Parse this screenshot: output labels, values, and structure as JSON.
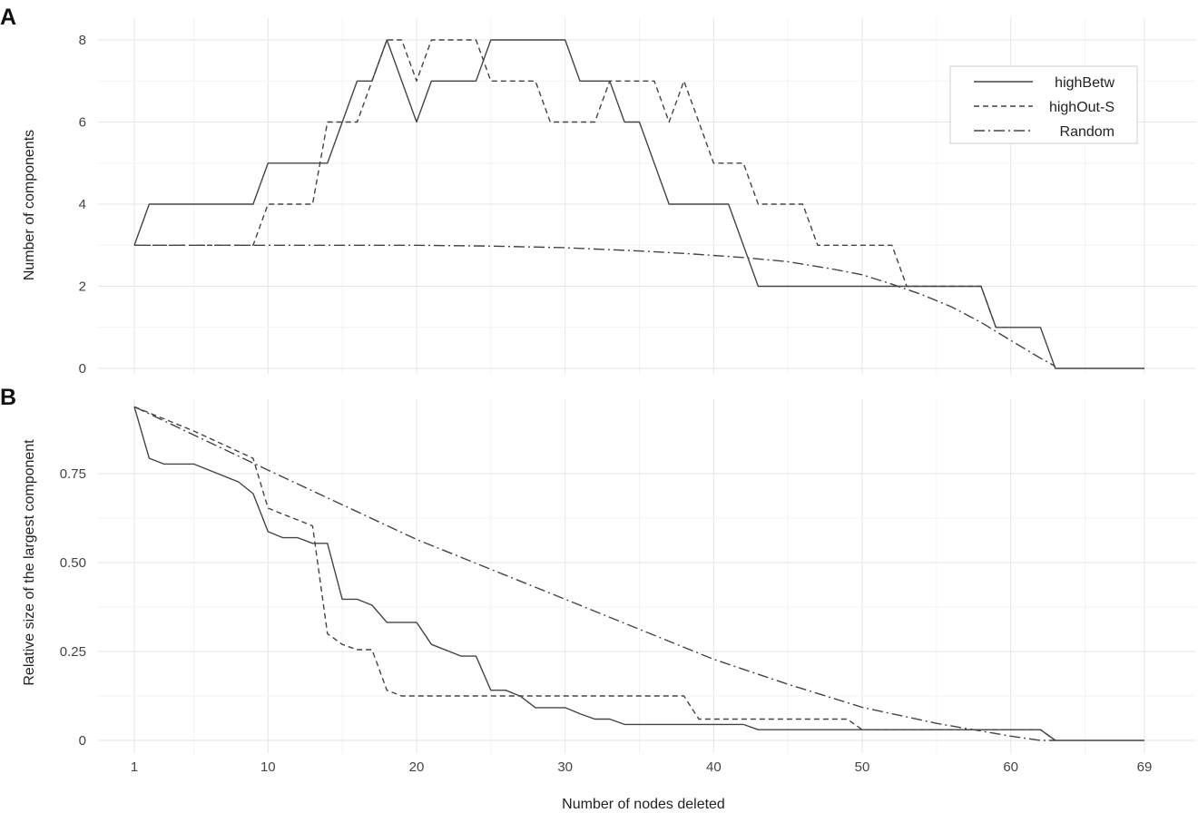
{
  "chart_data": [
    {
      "type": "line",
      "panel": "A",
      "title": "",
      "xlabel": "",
      "ylabel": "Number of components",
      "xlim": [
        1,
        69
      ],
      "ylim": [
        0,
        8
      ],
      "x_ticks": [
        1,
        10,
        20,
        30,
        40,
        50,
        60,
        69
      ],
      "y_ticks": [
        0,
        2,
        4,
        6,
        8
      ],
      "y_tick_labels": [
        "0",
        "2",
        "4",
        "6",
        "8"
      ],
      "grid": true,
      "legend": {
        "placement": "top-right",
        "entries": [
          "highBetw",
          "highOut-S",
          "Random"
        ]
      },
      "series": [
        {
          "name": "highBetw",
          "style": "solid",
          "points": [
            [
              1,
              3
            ],
            [
              2,
              4
            ],
            [
              9,
              4
            ],
            [
              10,
              5
            ],
            [
              14,
              5
            ],
            [
              16,
              7
            ],
            [
              17,
              7
            ],
            [
              18,
              8
            ],
            [
              20,
              6
            ],
            [
              21,
              7
            ],
            [
              24,
              7
            ],
            [
              25,
              8
            ],
            [
              30,
              8
            ],
            [
              31,
              7
            ],
            [
              33,
              7
            ],
            [
              34,
              6
            ],
            [
              35,
              6
            ],
            [
              37,
              4
            ],
            [
              41,
              4
            ],
            [
              43,
              2
            ],
            [
              58,
              2
            ],
            [
              59,
              1
            ],
            [
              61,
              1
            ],
            [
              62,
              1
            ],
            [
              63,
              0
            ],
            [
              69,
              0
            ]
          ]
        },
        {
          "name": "highOut-S",
          "style": "dashed",
          "points": [
            [
              1,
              3
            ],
            [
              9,
              3
            ],
            [
              10,
              4
            ],
            [
              13,
              4
            ],
            [
              14,
              6
            ],
            [
              16,
              6
            ],
            [
              17,
              7
            ],
            [
              18,
              8
            ],
            [
              19,
              8
            ],
            [
              20,
              7
            ],
            [
              21,
              8
            ],
            [
              24,
              8
            ],
            [
              25,
              7
            ],
            [
              28,
              7
            ],
            [
              29,
              6
            ],
            [
              32,
              6
            ],
            [
              33,
              7
            ],
            [
              36,
              7
            ],
            [
              37,
              6
            ],
            [
              38,
              7
            ],
            [
              39,
              6
            ],
            [
              40,
              5
            ],
            [
              42,
              5
            ],
            [
              43,
              4
            ],
            [
              46,
              4
            ],
            [
              47,
              3
            ],
            [
              52,
              3
            ],
            [
              53,
              2
            ],
            [
              58,
              2
            ],
            [
              59,
              1
            ],
            [
              60,
              1
            ]
          ]
        },
        {
          "name": "Random",
          "style": "dashdot",
          "points": [
            [
              1,
              3
            ],
            [
              10,
              3
            ],
            [
              20,
              3
            ],
            [
              25,
              2.98
            ],
            [
              30,
              2.94
            ],
            [
              35,
              2.86
            ],
            [
              38,
              2.8
            ],
            [
              42,
              2.7
            ],
            [
              45,
              2.6
            ],
            [
              48,
              2.42
            ],
            [
              50,
              2.28
            ],
            [
              52,
              2.05
            ],
            [
              54,
              1.8
            ],
            [
              56,
              1.5
            ],
            [
              58,
              1.12
            ],
            [
              60,
              0.68
            ],
            [
              62,
              0.25
            ],
            [
              63,
              0.05
            ]
          ]
        }
      ]
    },
    {
      "type": "line",
      "panel": "B",
      "title": "",
      "xlabel": "Number of nodes deleted",
      "ylabel": "Relative size of the largest component",
      "xlim": [
        1,
        69
      ],
      "ylim": [
        0,
        0.94
      ],
      "x_ticks": [
        1,
        10,
        20,
        30,
        40,
        50,
        60,
        69
      ],
      "x_tick_labels": [
        "1",
        "10",
        "20",
        "30",
        "40",
        "50",
        "60",
        "69"
      ],
      "y_ticks": [
        0,
        0.25,
        0.5,
        0.75
      ],
      "y_tick_labels": [
        "0",
        "0.25",
        "0.50",
        "0.75"
      ],
      "grid": true,
      "series": [
        {
          "name": "highBetw",
          "style": "solid",
          "points": [
            [
              1,
              0.938
            ],
            [
              2,
              0.793
            ],
            [
              3,
              0.777
            ],
            [
              5,
              0.777
            ],
            [
              8,
              0.727
            ],
            [
              9,
              0.694
            ],
            [
              10,
              0.587
            ],
            [
              11,
              0.57
            ],
            [
              12,
              0.57
            ],
            [
              13,
              0.554
            ],
            [
              14,
              0.554
            ],
            [
              15,
              0.397
            ],
            [
              16,
              0.397
            ],
            [
              17,
              0.38
            ],
            [
              18,
              0.332
            ],
            [
              20,
              0.332
            ],
            [
              21,
              0.27
            ],
            [
              23,
              0.237
            ],
            [
              24,
              0.237
            ],
            [
              25,
              0.141
            ],
            [
              26,
              0.141
            ],
            [
              27,
              0.124
            ],
            [
              28,
              0.092
            ],
            [
              30,
              0.092
            ],
            [
              31,
              0.075
            ],
            [
              32,
              0.06
            ],
            [
              33,
              0.06
            ],
            [
              34,
              0.045
            ],
            [
              42,
              0.045
            ],
            [
              43,
              0.03
            ],
            [
              62,
              0.03
            ],
            [
              63,
              0
            ],
            [
              69,
              0
            ]
          ]
        },
        {
          "name": "highOut-S",
          "style": "dashed",
          "points": [
            [
              1,
              0.938
            ],
            [
              5,
              0.87
            ],
            [
              9,
              0.793
            ],
            [
              10,
              0.653
            ],
            [
              11,
              0.636
            ],
            [
              12,
              0.62
            ],
            [
              13,
              0.603
            ],
            [
              14,
              0.3
            ],
            [
              15,
              0.27
            ],
            [
              16,
              0.255
            ],
            [
              17,
              0.255
            ],
            [
              18,
              0.141
            ],
            [
              19,
              0.125
            ],
            [
              38,
              0.125
            ],
            [
              39,
              0.06
            ],
            [
              49,
              0.06
            ],
            [
              50,
              0.03
            ],
            [
              62,
              0.03
            ],
            [
              63,
              0
            ]
          ]
        },
        {
          "name": "Random",
          "style": "dashdot",
          "points": [
            [
              1,
              0.938
            ],
            [
              10,
              0.76
            ],
            [
              20,
              0.565
            ],
            [
              30,
              0.397
            ],
            [
              40,
              0.228
            ],
            [
              45,
              0.158
            ],
            [
              50,
              0.093
            ],
            [
              55,
              0.048
            ],
            [
              60,
              0.012
            ],
            [
              62,
              0
            ],
            [
              63,
              0
            ]
          ]
        }
      ]
    }
  ]
}
